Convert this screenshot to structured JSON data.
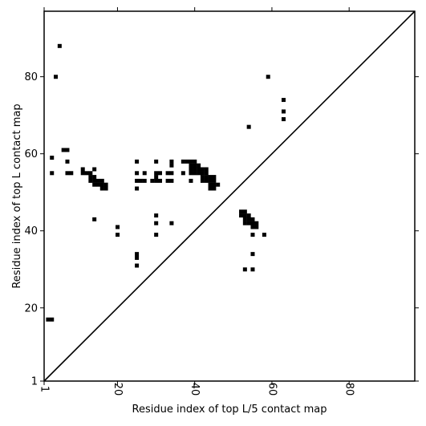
{
  "chart_data": {
    "type": "heatmap",
    "xlabel": "Residue index of top L/5 contact map",
    "ylabel": "Residue index of top L contact map",
    "xlim": [
      1,
      97
    ],
    "ylim": [
      1,
      97
    ],
    "xticks": [
      1,
      20,
      40,
      60,
      80
    ],
    "yticks": [
      1,
      20,
      40,
      60,
      80
    ],
    "diagonal": true,
    "cell_color": "#000000",
    "cells": [
      [
        2,
        17
      ],
      [
        3,
        17
      ],
      [
        3,
        59
      ],
      [
        3,
        55
      ],
      [
        4,
        80
      ],
      [
        5,
        88
      ],
      [
        6,
        61
      ],
      [
        7,
        61
      ],
      [
        7,
        58
      ],
      [
        7,
        55
      ],
      [
        8,
        55
      ],
      [
        11,
        56
      ],
      [
        11,
        55
      ],
      [
        12,
        55
      ],
      [
        13,
        55
      ],
      [
        13,
        54
      ],
      [
        13,
        53
      ],
      [
        14,
        56
      ],
      [
        14,
        54
      ],
      [
        14,
        53
      ],
      [
        14,
        52
      ],
      [
        14,
        43
      ],
      [
        15,
        53
      ],
      [
        15,
        52
      ],
      [
        16,
        53
      ],
      [
        16,
        52
      ],
      [
        16,
        51
      ],
      [
        17,
        52
      ],
      [
        17,
        51
      ],
      [
        20,
        41
      ],
      [
        20,
        39
      ],
      [
        25,
        58
      ],
      [
        25,
        55
      ],
      [
        25,
        53
      ],
      [
        25,
        51
      ],
      [
        25,
        34
      ],
      [
        25,
        33
      ],
      [
        25,
        31
      ],
      [
        26,
        53
      ],
      [
        27,
        55
      ],
      [
        27,
        53
      ],
      [
        29,
        53
      ],
      [
        30,
        58
      ],
      [
        30,
        55
      ],
      [
        30,
        54
      ],
      [
        30,
        53
      ],
      [
        30,
        44
      ],
      [
        30,
        42
      ],
      [
        30,
        39
      ],
      [
        31,
        55
      ],
      [
        31,
        53
      ],
      [
        33,
        55
      ],
      [
        33,
        53
      ],
      [
        34,
        58
      ],
      [
        34,
        57
      ],
      [
        34,
        55
      ],
      [
        34,
        53
      ],
      [
        34,
        42
      ],
      [
        37,
        58
      ],
      [
        37,
        55
      ],
      [
        38,
        58
      ],
      [
        39,
        58
      ],
      [
        39,
        57
      ],
      [
        39,
        56
      ],
      [
        39,
        55
      ],
      [
        39,
        53
      ],
      [
        40,
        58
      ],
      [
        40,
        57
      ],
      [
        40,
        56
      ],
      [
        40,
        55
      ],
      [
        41,
        57
      ],
      [
        41,
        56
      ],
      [
        41,
        55
      ],
      [
        42,
        56
      ],
      [
        42,
        55
      ],
      [
        42,
        54
      ],
      [
        42,
        53
      ],
      [
        43,
        56
      ],
      [
        43,
        55
      ],
      [
        43,
        54
      ],
      [
        43,
        53
      ],
      [
        44,
        54
      ],
      [
        44,
        53
      ],
      [
        44,
        52
      ],
      [
        44,
        51
      ],
      [
        45,
        54
      ],
      [
        45,
        53
      ],
      [
        45,
        52
      ],
      [
        45,
        51
      ],
      [
        46,
        52
      ],
      [
        52,
        45
      ],
      [
        52,
        44
      ],
      [
        53,
        45
      ],
      [
        53,
        44
      ],
      [
        53,
        43
      ],
      [
        53,
        42
      ],
      [
        53,
        30
      ],
      [
        54,
        44
      ],
      [
        54,
        43
      ],
      [
        54,
        42
      ],
      [
        54,
        67
      ],
      [
        55,
        43
      ],
      [
        55,
        42
      ],
      [
        55,
        41
      ],
      [
        55,
        39
      ],
      [
        55,
        34
      ],
      [
        55,
        30
      ],
      [
        56,
        42
      ],
      [
        56,
        41
      ],
      [
        58,
        39
      ],
      [
        59,
        80
      ],
      [
        63,
        74
      ],
      [
        63,
        71
      ],
      [
        63,
        69
      ]
    ]
  }
}
